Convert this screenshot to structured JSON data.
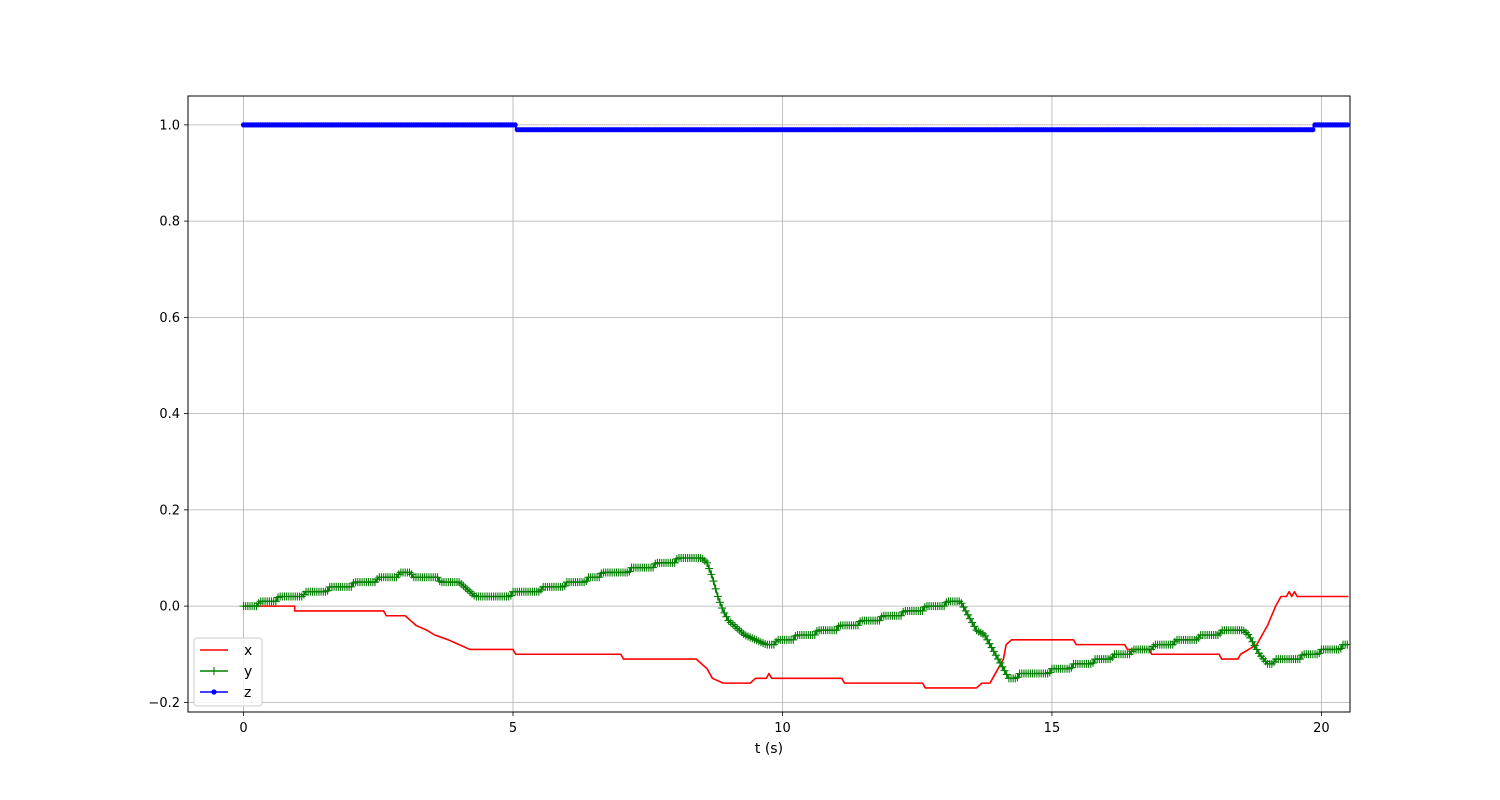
{
  "chart_data": {
    "type": "line",
    "title": "",
    "xlabel": "t (s)",
    "ylabel": "",
    "xlim": [
      -1.03,
      20.53
    ],
    "ylim": [
      -0.22,
      1.06
    ],
    "xticks": [
      0,
      5,
      10,
      15,
      20
    ],
    "yticks": [
      -0.2,
      0.0,
      0.2,
      0.4,
      0.6,
      0.8,
      1.0
    ],
    "xtick_labels": [
      "0",
      "5",
      "10",
      "15",
      "20"
    ],
    "ytick_labels": [
      "−0.2",
      "0.0",
      "0.2",
      "0.4",
      "0.6",
      "0.8",
      "1.0"
    ],
    "grid": true,
    "legend_position": "lower-left",
    "marker_step": 0.04,
    "series": [
      {
        "name": "x",
        "color": "#ff0000",
        "marker": "none",
        "points": [
          [
            0.0,
            0.0
          ],
          [
            0.95,
            0.0
          ],
          [
            0.95,
            -0.01
          ],
          [
            2.6,
            -0.01
          ],
          [
            2.65,
            -0.02
          ],
          [
            3.0,
            -0.02
          ],
          [
            3.1,
            -0.03
          ],
          [
            3.2,
            -0.04
          ],
          [
            3.4,
            -0.05
          ],
          [
            3.55,
            -0.06
          ],
          [
            3.8,
            -0.07
          ],
          [
            4.0,
            -0.08
          ],
          [
            4.2,
            -0.09
          ],
          [
            5.0,
            -0.09
          ],
          [
            5.05,
            -0.1
          ],
          [
            7.0,
            -0.1
          ],
          [
            7.05,
            -0.11
          ],
          [
            8.4,
            -0.11
          ],
          [
            8.5,
            -0.12
          ],
          [
            8.6,
            -0.13
          ],
          [
            8.7,
            -0.15
          ],
          [
            8.9,
            -0.16
          ],
          [
            9.4,
            -0.16
          ],
          [
            9.5,
            -0.15
          ],
          [
            9.7,
            -0.15
          ],
          [
            9.75,
            -0.14
          ],
          [
            9.8,
            -0.15
          ],
          [
            11.1,
            -0.15
          ],
          [
            11.15,
            -0.16
          ],
          [
            12.6,
            -0.16
          ],
          [
            12.65,
            -0.17
          ],
          [
            13.6,
            -0.17
          ],
          [
            13.7,
            -0.16
          ],
          [
            13.85,
            -0.16
          ],
          [
            13.9,
            -0.15
          ],
          [
            14.0,
            -0.13
          ],
          [
            14.1,
            -0.11
          ],
          [
            14.15,
            -0.08
          ],
          [
            14.25,
            -0.07
          ],
          [
            15.4,
            -0.07
          ],
          [
            15.45,
            -0.08
          ],
          [
            16.35,
            -0.08
          ],
          [
            16.4,
            -0.09
          ],
          [
            16.8,
            -0.09
          ],
          [
            16.85,
            -0.1
          ],
          [
            18.1,
            -0.1
          ],
          [
            18.15,
            -0.11
          ],
          [
            18.45,
            -0.11
          ],
          [
            18.5,
            -0.1
          ],
          [
            18.65,
            -0.09
          ],
          [
            18.8,
            -0.08
          ],
          [
            19.0,
            -0.04
          ],
          [
            19.15,
            0.0
          ],
          [
            19.25,
            0.02
          ],
          [
            19.35,
            0.02
          ],
          [
            19.4,
            0.03
          ],
          [
            19.45,
            0.02
          ],
          [
            19.5,
            0.03
          ],
          [
            19.55,
            0.02
          ],
          [
            20.5,
            0.02
          ]
        ]
      },
      {
        "name": "y",
        "color": "#008000",
        "marker": "plus",
        "points": [
          [
            0.0,
            0.0
          ],
          [
            0.25,
            0.0
          ],
          [
            0.3,
            0.01
          ],
          [
            0.6,
            0.01
          ],
          [
            0.65,
            0.02
          ],
          [
            1.1,
            0.02
          ],
          [
            1.15,
            0.03
          ],
          [
            1.55,
            0.03
          ],
          [
            1.6,
            0.04
          ],
          [
            2.0,
            0.04
          ],
          [
            2.05,
            0.05
          ],
          [
            2.45,
            0.05
          ],
          [
            2.5,
            0.06
          ],
          [
            2.85,
            0.06
          ],
          [
            2.9,
            0.07
          ],
          [
            3.1,
            0.07
          ],
          [
            3.15,
            0.06
          ],
          [
            3.6,
            0.06
          ],
          [
            3.65,
            0.05
          ],
          [
            4.0,
            0.05
          ],
          [
            4.1,
            0.04
          ],
          [
            4.2,
            0.03
          ],
          [
            4.3,
            0.02
          ],
          [
            4.95,
            0.02
          ],
          [
            5.0,
            0.03
          ],
          [
            5.5,
            0.03
          ],
          [
            5.55,
            0.04
          ],
          [
            5.95,
            0.04
          ],
          [
            6.0,
            0.05
          ],
          [
            6.35,
            0.05
          ],
          [
            6.4,
            0.06
          ],
          [
            6.6,
            0.06
          ],
          [
            6.65,
            0.07
          ],
          [
            7.15,
            0.07
          ],
          [
            7.2,
            0.08
          ],
          [
            7.6,
            0.08
          ],
          [
            7.65,
            0.09
          ],
          [
            8.0,
            0.09
          ],
          [
            8.05,
            0.1
          ],
          [
            8.5,
            0.1
          ],
          [
            8.6,
            0.09
          ],
          [
            8.7,
            0.06
          ],
          [
            8.8,
            0.02
          ],
          [
            8.9,
            -0.01
          ],
          [
            9.0,
            -0.03
          ],
          [
            9.1,
            -0.04
          ],
          [
            9.2,
            -0.05
          ],
          [
            9.3,
            -0.06
          ],
          [
            9.5,
            -0.07
          ],
          [
            9.7,
            -0.08
          ],
          [
            9.85,
            -0.08
          ],
          [
            9.9,
            -0.07
          ],
          [
            10.2,
            -0.07
          ],
          [
            10.25,
            -0.06
          ],
          [
            10.6,
            -0.06
          ],
          [
            10.65,
            -0.05
          ],
          [
            11.0,
            -0.05
          ],
          [
            11.05,
            -0.04
          ],
          [
            11.4,
            -0.04
          ],
          [
            11.45,
            -0.03
          ],
          [
            11.8,
            -0.03
          ],
          [
            11.85,
            -0.02
          ],
          [
            12.2,
            -0.02
          ],
          [
            12.25,
            -0.01
          ],
          [
            12.6,
            -0.01
          ],
          [
            12.65,
            0.0
          ],
          [
            13.0,
            0.0
          ],
          [
            13.05,
            0.01
          ],
          [
            13.3,
            0.01
          ],
          [
            13.4,
            -0.01
          ],
          [
            13.5,
            -0.03
          ],
          [
            13.6,
            -0.05
          ],
          [
            13.75,
            -0.06
          ],
          [
            13.85,
            -0.08
          ],
          [
            13.95,
            -0.1
          ],
          [
            14.1,
            -0.13
          ],
          [
            14.2,
            -0.15
          ],
          [
            14.35,
            -0.15
          ],
          [
            14.4,
            -0.14
          ],
          [
            14.95,
            -0.14
          ],
          [
            15.0,
            -0.13
          ],
          [
            15.35,
            -0.13
          ],
          [
            15.4,
            -0.12
          ],
          [
            15.75,
            -0.12
          ],
          [
            15.8,
            -0.11
          ],
          [
            16.1,
            -0.11
          ],
          [
            16.15,
            -0.1
          ],
          [
            16.45,
            -0.1
          ],
          [
            16.5,
            -0.09
          ],
          [
            16.85,
            -0.09
          ],
          [
            16.9,
            -0.08
          ],
          [
            17.25,
            -0.08
          ],
          [
            17.3,
            -0.07
          ],
          [
            17.7,
            -0.07
          ],
          [
            17.75,
            -0.06
          ],
          [
            18.1,
            -0.06
          ],
          [
            18.15,
            -0.05
          ],
          [
            18.55,
            -0.05
          ],
          [
            18.65,
            -0.06
          ],
          [
            18.75,
            -0.08
          ],
          [
            18.85,
            -0.1
          ],
          [
            19.0,
            -0.12
          ],
          [
            19.1,
            -0.12
          ],
          [
            19.15,
            -0.11
          ],
          [
            19.6,
            -0.11
          ],
          [
            19.65,
            -0.1
          ],
          [
            19.95,
            -0.1
          ],
          [
            20.0,
            -0.09
          ],
          [
            20.35,
            -0.09
          ],
          [
            20.4,
            -0.08
          ],
          [
            20.5,
            -0.08
          ]
        ]
      },
      {
        "name": "z",
        "color": "#0000ff",
        "marker": "dot",
        "points": [
          [
            0.0,
            1.0
          ],
          [
            5.05,
            1.0
          ],
          [
            5.05,
            0.99
          ],
          [
            19.85,
            0.99
          ],
          [
            19.85,
            1.0
          ],
          [
            20.5,
            1.0
          ]
        ]
      }
    ]
  }
}
